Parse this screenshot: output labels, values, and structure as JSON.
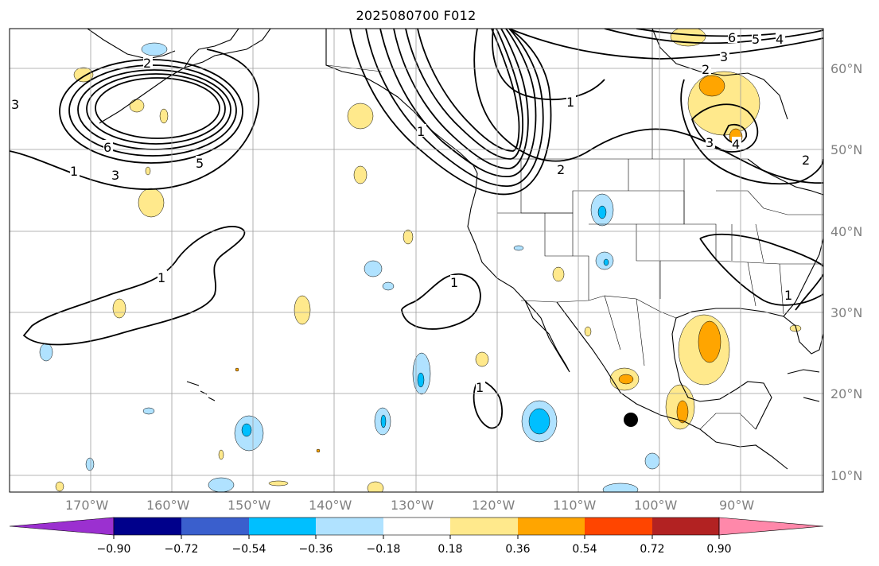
{
  "title": "2025080700 F012",
  "latitude_labels": [
    "60°N",
    "50°N",
    "40°N",
    "30°N",
    "20°N",
    "10°N"
  ],
  "longitude_labels": [
    "170°W",
    "160°W",
    "150°W",
    "140°W",
    "130°W",
    "120°W",
    "110°W",
    "100°W",
    "90°W"
  ],
  "colorbar": {
    "ticks": [
      "−0.90",
      "−0.72",
      "−0.54",
      "−0.36",
      "−0.18",
      "0.18",
      "0.36",
      "0.54",
      "0.72",
      "0.90"
    ],
    "colors": [
      "#9b30d0",
      "#00008b",
      "#3a5fcd",
      "#00bfff",
      "#b0e2ff",
      "#ffffff",
      "#ffe98c",
      "#ffa500",
      "#ff4500",
      "#b22222",
      "#ff88aa"
    ]
  },
  "contour_labels": [
    "1",
    "2",
    "3",
    "4",
    "5",
    "6"
  ],
  "marker": "black-dot"
}
